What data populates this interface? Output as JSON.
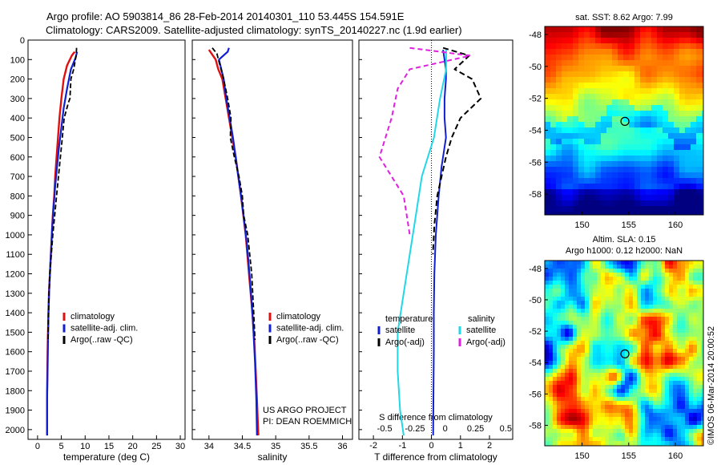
{
  "header": {
    "line1": "Argo profile: AO 5903814_86 28-Feb-2014 20140301_110 53.445S 154.591E",
    "line2": "Climatology: CARS2009. Satellite-adjusted climatology: synTS_20140227.nc (1.9d earlier)"
  },
  "colors": {
    "climatology": "#e01010",
    "satellite": "#1020d0",
    "argo": "#000000",
    "satellite_salinity": "#20d8e8",
    "argo_salinity_diff": "#e020e0"
  },
  "chart_data": [
    {
      "type": "line",
      "panel": "temperature",
      "xlabel": "temperature (deg C)",
      "xlim": [
        -2,
        31
      ],
      "xticks": [
        0,
        5,
        10,
        15,
        20,
        25,
        30
      ],
      "ylim": [
        2050,
        0
      ],
      "yticks": [
        0,
        100,
        200,
        300,
        400,
        500,
        600,
        700,
        800,
        900,
        1000,
        1100,
        1200,
        1300,
        1400,
        1500,
        1600,
        1700,
        1800,
        1900,
        2000
      ],
      "legend": [
        "climatology",
        "satellite-adj. clim.",
        "Argo(..raw -QC)"
      ],
      "series": [
        {
          "name": "climatology",
          "x": [
            7.8,
            7.2,
            6.2,
            5.5,
            5.0,
            4.6,
            4.3,
            4.0,
            3.7,
            3.5,
            3.2,
            3.0,
            2.8,
            2.6,
            2.4,
            2.3,
            2.2,
            2.1,
            2.0,
            2.0,
            2.0
          ],
          "y": [
            60,
            80,
            130,
            200,
            300,
            400,
            500,
            600,
            700,
            800,
            900,
            1000,
            1100,
            1200,
            1300,
            1400,
            1500,
            1600,
            1800,
            1900,
            2030
          ]
        },
        {
          "name": "satellite-adj. clim.",
          "x": [
            8.3,
            8.0,
            7.0,
            6.2,
            5.5,
            5.0,
            4.5,
            4.1,
            3.7,
            3.4,
            3.1,
            2.9,
            2.7,
            2.5,
            2.3,
            2.2,
            2.1,
            2.0,
            2.0
          ],
          "y": [
            60,
            90,
            150,
            250,
            350,
            450,
            550,
            650,
            750,
            850,
            950,
            1050,
            1150,
            1250,
            1400,
            1550,
            1700,
            1850,
            2030
          ]
        },
        {
          "name": "Argo(..raw -QC)",
          "x": [
            8.2,
            8.1,
            7.6,
            7.0,
            6.8,
            6.5,
            5.6,
            5.2,
            4.8,
            4.4,
            4.0,
            3.6,
            3.2,
            2.9,
            2.6,
            2.4,
            2.3,
            2.2
          ],
          "y": [
            40,
            80,
            150,
            200,
            300,
            320,
            400,
            500,
            600,
            700,
            800,
            900,
            1000,
            1100,
            1200,
            1300,
            1400,
            1550
          ]
        }
      ]
    },
    {
      "type": "line",
      "panel": "salinity",
      "xlabel": "salinity",
      "xlim": [
        33.75,
        36.15
      ],
      "xticks": [
        34,
        34.5,
        35,
        35.5,
        36
      ],
      "xticklabels": [
        "34",
        "34.5",
        "35",
        "35.5",
        "36"
      ],
      "ylim": [
        2050,
        0
      ],
      "legend": [
        "climatology",
        "satellite-adj. clim.",
        "Argo(..raw -QC)"
      ],
      "series": [
        {
          "name": "climatology",
          "x": [
            34.0,
            34.1,
            34.14,
            34.2,
            34.25,
            34.3,
            34.35,
            34.4,
            34.48,
            34.55,
            34.6,
            34.65,
            34.68,
            34.7,
            34.72,
            34.73,
            34.74
          ],
          "y": [
            50,
            100,
            150,
            200,
            300,
            400,
            500,
            600,
            800,
            1000,
            1200,
            1400,
            1550,
            1700,
            1850,
            1950,
            2030
          ]
        },
        {
          "name": "satellite-adj. clim.",
          "x": [
            34.3,
            34.28,
            34.15,
            34.22,
            34.26,
            34.31,
            34.36,
            34.42,
            34.5,
            34.57,
            34.62,
            34.66,
            34.69,
            34.71,
            34.72
          ],
          "y": [
            40,
            60,
            100,
            200,
            300,
            400,
            500,
            650,
            850,
            1050,
            1250,
            1450,
            1650,
            1850,
            2030
          ]
        },
        {
          "name": "Argo(..raw -QC)",
          "x": [
            34.05,
            34.12,
            34.15,
            34.22,
            34.28,
            34.33,
            34.32,
            34.38,
            34.45,
            34.5,
            34.52,
            34.58,
            34.64,
            34.67,
            34.69
          ],
          "y": [
            40,
            70,
            110,
            200,
            300,
            400,
            500,
            600,
            700,
            800,
            900,
            1000,
            1200,
            1400,
            1540
          ]
        }
      ]
    },
    {
      "type": "line",
      "panel": "differences",
      "xlabel": "T difference from climatology",
      "xlabel_top": "S difference from climatology",
      "xlim": [
        -2.5,
        2.8
      ],
      "xticks": [
        -2,
        -1,
        0,
        1,
        2
      ],
      "s_xticks": [
        -0.5,
        -0.25,
        0,
        0.25,
        0.5
      ],
      "s_xticklabels": [
        "-0.5",
        "-0.25",
        "0",
        "0.25",
        "0.5"
      ],
      "ylim": [
        2050,
        0
      ],
      "legend_titles": [
        "temperature",
        "salinity"
      ],
      "legend": [
        "satellite",
        "Argo(-adj)",
        "satellite",
        "Argo(-adj)"
      ],
      "series": [
        {
          "name": "temperature satellite",
          "x": [
            0.4,
            0.45,
            0.5,
            0.5,
            0.45,
            0.45,
            0.5,
            0.45,
            0.35,
            0.25,
            0.15,
            0.1,
            0.08,
            0.08,
            0.07,
            0.06
          ],
          "y": [
            50,
            100,
            150,
            200,
            300,
            400,
            500,
            550,
            650,
            800,
            1000,
            1200,
            1400,
            1600,
            1800,
            2030
          ]
        },
        {
          "name": "temperature Argo(-adj)",
          "x": [
            0.4,
            1.3,
            0.8,
            1.4,
            1.7,
            1.0,
            0.7,
            0.5,
            0.35,
            0.2,
            0.1,
            0.05
          ],
          "y": [
            40,
            80,
            150,
            200,
            300,
            400,
            500,
            600,
            700,
            800,
            950,
            1100
          ]
        },
        {
          "name": "salinity satellite",
          "x": [
            0.1,
            0.1,
            0.05,
            0.0,
            -0.1,
            -0.15,
            -0.2,
            -0.25,
            -0.3,
            -0.3,
            -0.28,
            -0.25
          ],
          "y": [
            50,
            150,
            300,
            500,
            700,
            900,
            1100,
            1300,
            1500,
            1700,
            1900,
            2030
          ]
        },
        {
          "name": "salinity Argo(-adj)",
          "x": [
            -0.2,
            0.3,
            -0.2,
            -0.3,
            -0.35,
            -0.45,
            -0.25,
            -0.2
          ],
          "y": [
            40,
            80,
            150,
            250,
            400,
            600,
            800,
            1000
          ]
        }
      ]
    },
    {
      "type": "heatmap",
      "panel": "sst-map",
      "title": "sat. SST: 8.62 Argo: 7.99",
      "xlim": [
        146,
        163
      ],
      "ylim": [
        -59.3,
        -47.5
      ],
      "xticks": [
        150,
        155,
        160
      ],
      "yticks": [
        -48,
        -50,
        -52,
        -54,
        -56,
        -58
      ],
      "marker": {
        "lon": 154.591,
        "lat": -53.445
      }
    },
    {
      "type": "heatmap",
      "panel": "sla-map",
      "title_line1": "Altim. SLA: 0.15",
      "title_line2": "Argo h1000: 0.12 h2000: NaN",
      "xlim": [
        146,
        163
      ],
      "ylim": [
        -59.3,
        -47.5
      ],
      "xticks": [
        150,
        155,
        160
      ],
      "yticks": [
        -48,
        -50,
        -52,
        -54,
        -56,
        -58
      ],
      "marker": {
        "lon": 154.591,
        "lat": -53.445
      }
    }
  ],
  "credits": {
    "project": "US ARGO PROJECT",
    "pi": "PI: DEAN ROEMMICH",
    "stamp": "©IMOS 06-Mar-2014 20:00:52"
  }
}
